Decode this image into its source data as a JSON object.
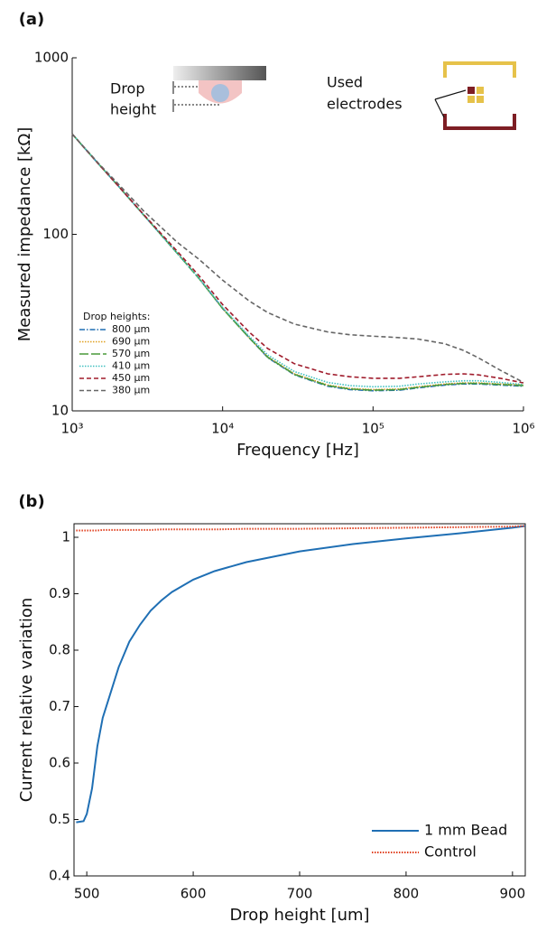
{
  "chart_data": [
    {
      "type": "line",
      "panel_label": "(a)",
      "xlabel": "Frequency [Hz]",
      "ylabel": "Measured impedance [kΩ]",
      "xscale": "log",
      "yscale": "log",
      "xlim": [
        1000,
        1000000
      ],
      "ylim": [
        10,
        1000
      ],
      "xticks": [
        {
          "value": 1000,
          "label": "10³"
        },
        {
          "value": 10000,
          "label": "10⁴"
        },
        {
          "value": 100000,
          "label": "10⁵"
        },
        {
          "value": 1000000,
          "label": "10⁶"
        }
      ],
      "yticks": [
        10,
        100,
        1000
      ],
      "legend": "lower left",
      "legend_title": "Drop heights:",
      "annotations": [
        "Drop",
        "height",
        "Used",
        "electrodes"
      ],
      "x": [
        1000,
        1500,
        2000,
        3000,
        5000,
        7000,
        10000,
        15000,
        20000,
        30000,
        50000,
        70000,
        100000,
        150000,
        200000,
        300000,
        400000,
        500000,
        700000,
        1000000
      ],
      "series": [
        {
          "name": "800 µm",
          "color": "#1f6fb4",
          "dash": "dashdot",
          "values": [
            370,
            250,
            190,
            128,
            78,
            56,
            38,
            26,
            20,
            16,
            13.8,
            13.2,
            13,
            13.1,
            13.5,
            14,
            14.2,
            14.2,
            14,
            13.8
          ]
        },
        {
          "name": "690 µm",
          "color": "#e0a020",
          "dash": "dotted",
          "values": [
            370,
            250,
            190,
            128,
            78,
            56,
            38,
            26,
            20.2,
            16.2,
            14,
            13.4,
            13.2,
            13.3,
            13.7,
            14.2,
            14.4,
            14.4,
            14.2,
            14
          ]
        },
        {
          "name": "570 µm",
          "color": "#4a9a3a",
          "dash": "longdash",
          "values": [
            370,
            250,
            190,
            128,
            78,
            56,
            38,
            26,
            20.1,
            16.1,
            13.9,
            13.3,
            13.1,
            13.2,
            13.6,
            14.1,
            14.3,
            14.3,
            14.1,
            13.9
          ]
        },
        {
          "name": "410 µm",
          "color": "#40c0c0",
          "dash": "dotted",
          "values": [
            370,
            250,
            190,
            128,
            78,
            56,
            38.5,
            26.5,
            20.7,
            16.7,
            14.5,
            13.9,
            13.7,
            13.8,
            14.2,
            14.6,
            14.8,
            14.8,
            14.5,
            14.1
          ]
        },
        {
          "name": "450 µm",
          "color": "#a01c2c",
          "dash": "dashed",
          "values": [
            370,
            250,
            190,
            129,
            80,
            58,
            40,
            28,
            22.5,
            18.5,
            16.2,
            15.6,
            15.3,
            15.3,
            15.6,
            16.1,
            16.2,
            16,
            15.3,
            14.4
          ]
        },
        {
          "name": "380 µm",
          "color": "#666666",
          "dash": "dashed",
          "values": [
            370,
            252,
            195,
            135,
            90,
            72,
            55,
            42,
            36,
            31,
            28,
            27,
            26.5,
            26,
            25.5,
            24,
            22,
            20,
            17,
            14.5
          ]
        }
      ]
    },
    {
      "type": "line",
      "panel_label": "(b)",
      "xlabel": "Drop height [um]",
      "ylabel": "Current relative variation",
      "xscale": "linear",
      "yscale": "linear",
      "xlim": [
        488,
        912
      ],
      "ylim": [
        0.4,
        1.024
      ],
      "xticks": [
        500,
        600,
        700,
        800,
        900
      ],
      "yticks": [
        0.4,
        0.5,
        0.6,
        0.7,
        0.8,
        0.9,
        1
      ],
      "legend": "lower right",
      "x": [
        490,
        497,
        500,
        505,
        510,
        515,
        520,
        530,
        540,
        550,
        560,
        570,
        580,
        600,
        620,
        650,
        700,
        750,
        800,
        850,
        900,
        912
      ],
      "series": [
        {
          "name": "1 mm Bead",
          "color": "#1f6fb4",
          "dash": "solid",
          "values": [
            0.495,
            0.497,
            0.51,
            0.555,
            0.63,
            0.68,
            0.71,
            0.77,
            0.815,
            0.845,
            0.87,
            0.888,
            0.903,
            0.925,
            0.94,
            0.956,
            0.975,
            0.988,
            0.998,
            1.007,
            1.017,
            1.02
          ]
        },
        {
          "name": "Control",
          "color": "#e04020",
          "dash": "dotted",
          "values": [
            1.012,
            1.012,
            1.012,
            1.012,
            1.012,
            1.013,
            1.013,
            1.013,
            1.013,
            1.013,
            1.013,
            1.014,
            1.014,
            1.014,
            1.014,
            1.015,
            1.015,
            1.016,
            1.017,
            1.018,
            1.019,
            1.02
          ]
        }
      ]
    }
  ]
}
